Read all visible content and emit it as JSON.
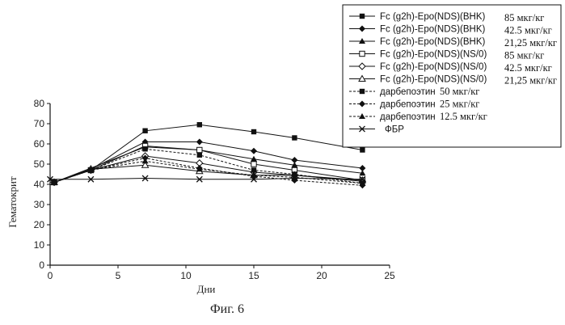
{
  "chart_data": {
    "type": "line",
    "title": "",
    "xlabel": "Дни",
    "ylabel": "Гематокрит",
    "xlim": [
      0,
      25
    ],
    "ylim": [
      0,
      80
    ],
    "xticks": [
      0,
      5,
      10,
      15,
      20,
      25
    ],
    "yticks": [
      0,
      10,
      20,
      30,
      40,
      50,
      60,
      70,
      80
    ],
    "legend_position": "top-right",
    "caption": "Фиг. 6",
    "series": [
      {
        "name": "Fc (g2h)-Epo(NDS)(BHK)",
        "dose": "85 мкг/кг",
        "marker": "square-filled",
        "dash": "solid",
        "x": [
          0.3,
          3,
          7,
          11,
          15,
          18,
          23
        ],
        "y": [
          41,
          47,
          66.5,
          69.5,
          66,
          63,
          57
        ]
      },
      {
        "name": "Fc (g2h)-Epo(NDS)(BHK)",
        "dose": "42.5 мкг/кг",
        "marker": "diamond-filled",
        "dash": "solid",
        "x": [
          0.3,
          3,
          7,
          11,
          15,
          18,
          23
        ],
        "y": [
          41,
          47.5,
          61,
          61,
          56.5,
          52,
          48
        ]
      },
      {
        "name": "Fc (g2h)-Epo(NDS)(BHK)",
        "dose": "21,25 мкг/кг",
        "marker": "triangle-filled",
        "dash": "solid",
        "x": [
          0.3,
          3,
          7,
          11,
          15,
          18,
          23
        ],
        "y": [
          41,
          48,
          58.5,
          57,
          52.5,
          49.5,
          45.5
        ]
      },
      {
        "name": "Fc (g2h)-Epo(NDS)(NS/0)",
        "dose": "85 мкг/кг",
        "marker": "square-open",
        "dash": "solid",
        "x": [
          0.3,
          3,
          7,
          11,
          15,
          18,
          23
        ],
        "y": [
          41,
          47,
          59,
          57,
          50,
          47,
          42
        ]
      },
      {
        "name": "Fc (g2h)-Epo(NDS)(NS/0)",
        "dose": "42.5 мкг/кг",
        "marker": "diamond-open",
        "dash": "solid",
        "x": [
          0.3,
          3,
          7,
          11,
          15,
          18,
          23
        ],
        "y": [
          41,
          47,
          54,
          50.5,
          46,
          44.5,
          41.5
        ]
      },
      {
        "name": "Fc (g2h)-Epo(NDS)(NS/0)",
        "dose": "21,25 мкг/кг",
        "marker": "triangle-open",
        "dash": "solid",
        "x": [
          0.3,
          3,
          7,
          11,
          15,
          18,
          23
        ],
        "y": [
          41,
          47.5,
          49.5,
          46.5,
          44.5,
          44.5,
          42
        ]
      },
      {
        "name": "дарбепоэтин",
        "dose": "50 мкг/кг",
        "marker": "square-filled",
        "dash": "dashed",
        "x": [
          0.3,
          3,
          7,
          11,
          15,
          18,
          23
        ],
        "y": [
          41,
          47,
          57.5,
          54.5,
          47,
          45,
          40.5
        ]
      },
      {
        "name": "дарбепоэтин",
        "dose": "25 мкг/кг",
        "marker": "diamond-filled",
        "dash": "dashed",
        "x": [
          0.3,
          3,
          7,
          11,
          15,
          18,
          23
        ],
        "y": [
          41,
          47,
          53,
          48,
          44,
          42,
          39.5
        ]
      },
      {
        "name": "дарбепоэтин",
        "dose": "12.5 мкг/кг",
        "marker": "triangle-filled",
        "dash": "dashed",
        "x": [
          0.3,
          3,
          7,
          11,
          15,
          18,
          23
        ],
        "y": [
          41,
          47,
          51.5,
          47.5,
          44.5,
          43.5,
          40.5
        ]
      },
      {
        "name": "ФБР",
        "dose": "",
        "marker": "x",
        "dash": "solid",
        "x": [
          0,
          3,
          7,
          11,
          15,
          18,
          23
        ],
        "y": [
          42.5,
          42.5,
          43,
          42.5,
          42.5,
          43,
          42.5
        ]
      }
    ]
  }
}
